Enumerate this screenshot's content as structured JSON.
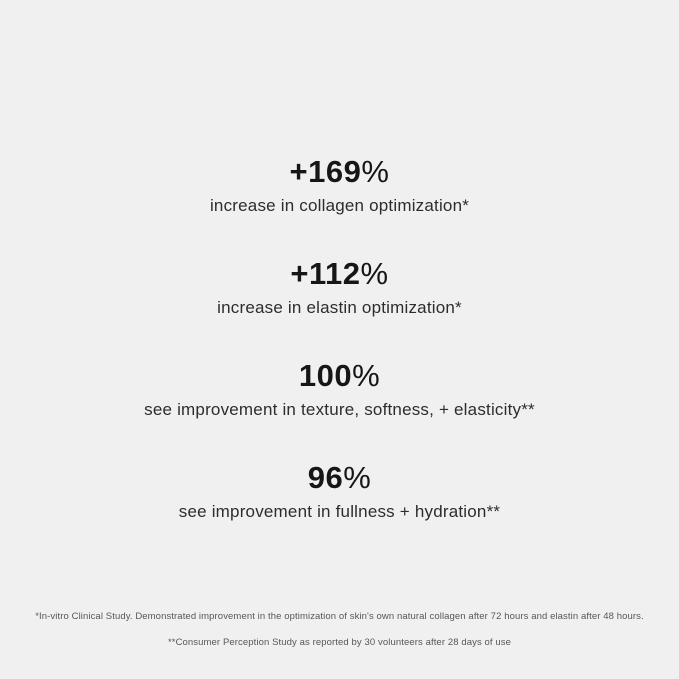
{
  "canvas": {
    "background_color": "#f0f0f1",
    "number_color": "#161616",
    "label_color": "#2d2d2d",
    "footnote_color": "#575757"
  },
  "stats": [
    {
      "value": "+169",
      "unit": "%",
      "label": "increase in collagen optimization*"
    },
    {
      "value": "+112",
      "unit": "%",
      "label": "increase in elastin optimization*"
    },
    {
      "value": "100",
      "unit": "%",
      "label": "see improvement in texture, softness, + elasticity**"
    },
    {
      "value": "96",
      "unit": "%",
      "label": "see improvement in fullness + hydration**"
    }
  ],
  "footnotes": {
    "clinical": "*In-vitro Clinical Study. Demonstrated improvement in the optimization of skin's own natural collagen after 72 hours and elastin after 48 hours.",
    "consumer": "**Consumer Perception Study as reported by 30 volunteers after 28 days of use"
  }
}
